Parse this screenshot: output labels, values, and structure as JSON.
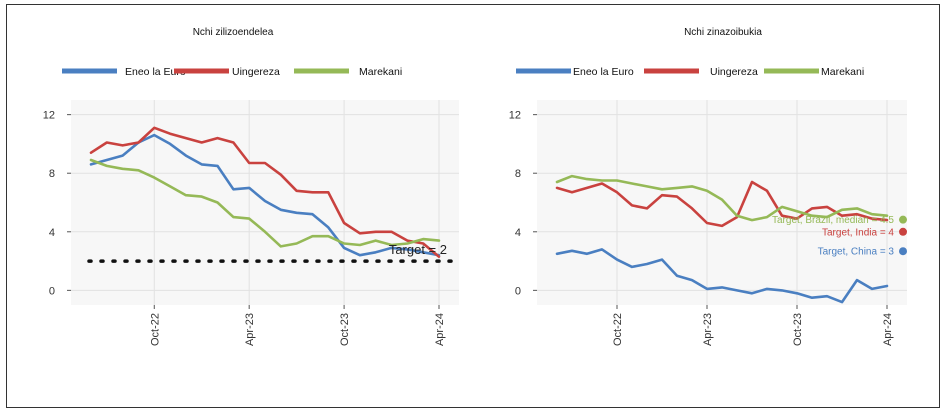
{
  "chart_data": [
    {
      "type": "line",
      "title": "Nchi zilizoendelea",
      "xlabel": "",
      "ylabel": "",
      "ylim": [
        -1,
        13
      ],
      "yticks": [
        0,
        4,
        8,
        12
      ],
      "ytick_labels": [
        "0",
        "4",
        "8",
        "12"
      ],
      "xtick_labels": [
        "Oct-22",
        "Apr-23",
        "Oct-23",
        "Apr-24"
      ],
      "xtick_index": [
        4,
        10,
        16,
        22
      ],
      "grid": true,
      "legend_position": "top",
      "series": [
        {
          "name": "Eneo la Euro",
          "color": "#4a7fc1",
          "values": [
            8.6,
            8.9,
            9.2,
            10.1,
            10.6,
            10.0,
            9.2,
            8.6,
            8.5,
            6.9,
            7.0,
            6.1,
            5.5,
            5.3,
            5.2,
            4.3,
            2.9,
            2.4,
            2.6,
            2.9,
            2.8,
            2.6,
            2.4
          ]
        },
        {
          "name": "Uingereza",
          "color": "#c9423f",
          "values": [
            9.4,
            10.1,
            9.9,
            10.1,
            11.1,
            10.7,
            10.4,
            10.1,
            10.4,
            10.1,
            8.7,
            8.7,
            7.9,
            6.8,
            6.7,
            6.7,
            4.6,
            3.9,
            4.0,
            4.0,
            3.4,
            3.2,
            2.3
          ]
        },
        {
          "name": "Marekani",
          "color": "#95b957",
          "values": [
            8.9,
            8.5,
            8.3,
            8.2,
            7.7,
            7.1,
            6.5,
            6.4,
            6.0,
            5.0,
            4.9,
            4.0,
            3.0,
            3.2,
            3.7,
            3.7,
            3.2,
            3.1,
            3.4,
            3.1,
            3.2,
            3.5,
            3.4
          ]
        }
      ],
      "reference_line": {
        "value": 2,
        "label": "Target = 2"
      }
    },
    {
      "type": "line",
      "title": "Nchi zinazoibukia",
      "xlabel": "",
      "ylabel": "",
      "ylim": [
        -1,
        13
      ],
      "yticks": [
        0,
        4,
        8,
        12
      ],
      "ytick_labels": [
        "0",
        "4",
        "8",
        "12"
      ],
      "xtick_labels": [
        "Oct-22",
        "Apr-23",
        "Oct-23",
        "Apr-24"
      ],
      "xtick_index": [
        4,
        10,
        16,
        22
      ],
      "grid": true,
      "legend_position": "top",
      "series": [
        {
          "name": "Eneo la Euro",
          "color": "#4a7fc1",
          "values": [
            2.5,
            2.7,
            2.5,
            2.8,
            2.1,
            1.6,
            1.8,
            2.1,
            1.0,
            0.7,
            0.1,
            0.2,
            0.0,
            -0.2,
            0.1,
            0.0,
            -0.2,
            -0.5,
            -0.4,
            -0.8,
            0.7,
            0.1,
            0.3
          ]
        },
        {
          "name": "Uingereza",
          "color": "#c9423f",
          "values": [
            7.0,
            6.7,
            7.0,
            7.3,
            6.7,
            5.8,
            5.6,
            6.5,
            6.4,
            5.6,
            4.6,
            4.4,
            5.0,
            7.4,
            6.8,
            5.1,
            4.9,
            5.6,
            5.7,
            5.1,
            5.2,
            4.9,
            4.8
          ]
        },
        {
          "name": "Marekani",
          "color": "#95b957",
          "values": [
            7.4,
            7.8,
            7.6,
            7.5,
            7.5,
            7.3,
            7.1,
            6.9,
            7.0,
            7.1,
            6.8,
            6.2,
            5.1,
            4.8,
            5.0,
            5.7,
            5.4,
            5.1,
            5.0,
            5.5,
            5.6,
            5.2,
            5.1
          ]
        }
      ],
      "target_markers": [
        {
          "label": "Target, Brazil, median = 4.5",
          "value": 4.5,
          "color": "#95b957"
        },
        {
          "label": "Target, India = 4",
          "value": 4.0,
          "color": "#c9423f"
        },
        {
          "label": "Target, China = 3",
          "value": 3.0,
          "color": "#4a7fc1"
        }
      ]
    }
  ]
}
